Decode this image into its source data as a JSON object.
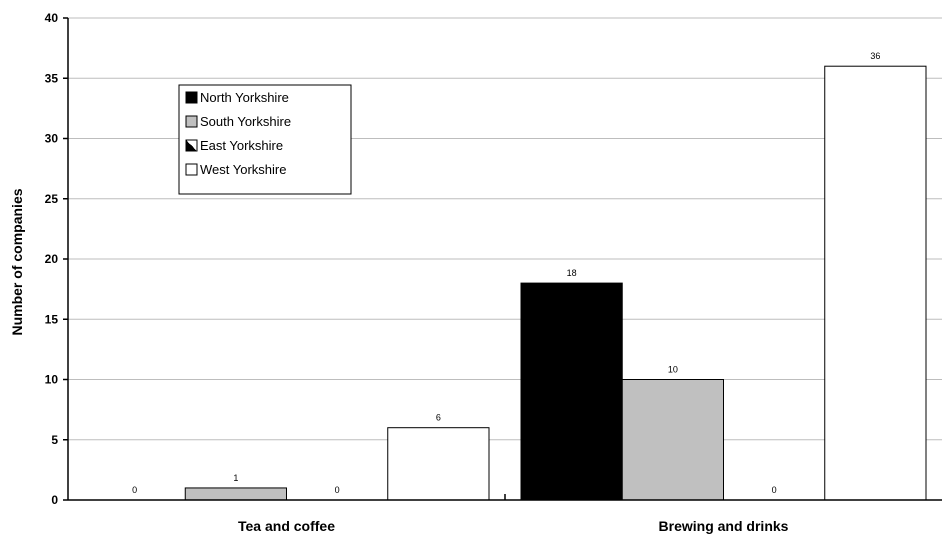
{
  "chart_data": {
    "type": "bar",
    "title": "",
    "xlabel": "",
    "ylabel": "Number of companies",
    "ylim": [
      0,
      40
    ],
    "y_ticks": [
      0,
      5,
      10,
      15,
      20,
      25,
      30,
      35,
      40
    ],
    "grid": true,
    "legend_position": "top-left",
    "categories": [
      "Tea and coffee",
      "Brewing and drinks"
    ],
    "series": [
      {
        "name": "North Yorkshire",
        "values": [
          0,
          18
        ],
        "color": "#000000",
        "pattern": "solid"
      },
      {
        "name": "South Yorkshire",
        "values": [
          1,
          10
        ],
        "color": "#c0c0c0",
        "pattern": "solid"
      },
      {
        "name": "East Yorkshire",
        "values": [
          0,
          0
        ],
        "color": "#000000",
        "pattern": "diagonal-half"
      },
      {
        "name": "West Yorkshire",
        "values": [
          6,
          36
        ],
        "color": "#ffffff",
        "pattern": "solid"
      }
    ]
  }
}
